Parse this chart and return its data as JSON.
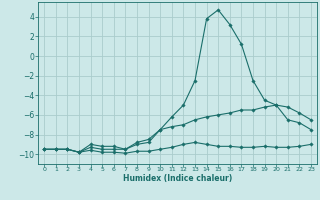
{
  "xlabel": "Humidex (Indice chaleur)",
  "bg_color": "#cce8e8",
  "line_color": "#1a6e6a",
  "grid_color": "#aacccc",
  "xticks": [
    0,
    1,
    2,
    3,
    4,
    5,
    6,
    7,
    8,
    9,
    10,
    11,
    12,
    13,
    14,
    15,
    16,
    17,
    18,
    19,
    20,
    21,
    22,
    23
  ],
  "yticks": [
    -10,
    -8,
    -6,
    -4,
    -2,
    0,
    2,
    4
  ],
  "xlim": [
    -0.5,
    23.5
  ],
  "ylim": [
    -11.0,
    5.5
  ],
  "line1_x": [
    0,
    1,
    2,
    3,
    4,
    5,
    6,
    7,
    8,
    9,
    10,
    11,
    12,
    13,
    14,
    15,
    16,
    17,
    18,
    19,
    20,
    21,
    22,
    23
  ],
  "line1_y": [
    -9.5,
    -9.5,
    -9.5,
    -9.8,
    -9.6,
    -9.8,
    -9.8,
    -9.9,
    -9.7,
    -9.7,
    -9.5,
    -9.3,
    -9.0,
    -8.8,
    -9.0,
    -9.2,
    -9.2,
    -9.3,
    -9.3,
    -9.2,
    -9.3,
    -9.3,
    -9.2,
    -9.0
  ],
  "line2_x": [
    0,
    1,
    2,
    3,
    4,
    5,
    6,
    7,
    8,
    9,
    10,
    11,
    12,
    13,
    14,
    15,
    16,
    17,
    18,
    19,
    20,
    21,
    22,
    23
  ],
  "line2_y": [
    -9.5,
    -9.5,
    -9.5,
    -9.8,
    -9.3,
    -9.5,
    -9.5,
    -9.5,
    -9.0,
    -8.8,
    -7.5,
    -6.2,
    -5.0,
    -2.5,
    3.8,
    4.7,
    3.2,
    1.2,
    -2.5,
    -4.5,
    -5.0,
    -6.5,
    -6.8,
    -7.5
  ],
  "line3_x": [
    0,
    1,
    2,
    3,
    4,
    5,
    6,
    7,
    8,
    9,
    10,
    11,
    12,
    13,
    14,
    15,
    16,
    17,
    18,
    19,
    20,
    21,
    22,
    23
  ],
  "line3_y": [
    -9.5,
    -9.5,
    -9.5,
    -9.8,
    -9.0,
    -9.2,
    -9.2,
    -9.5,
    -8.8,
    -8.5,
    -7.5,
    -7.2,
    -7.0,
    -6.5,
    -6.2,
    -6.0,
    -5.8,
    -5.5,
    -5.5,
    -5.2,
    -5.0,
    -5.2,
    -5.8,
    -6.5
  ]
}
